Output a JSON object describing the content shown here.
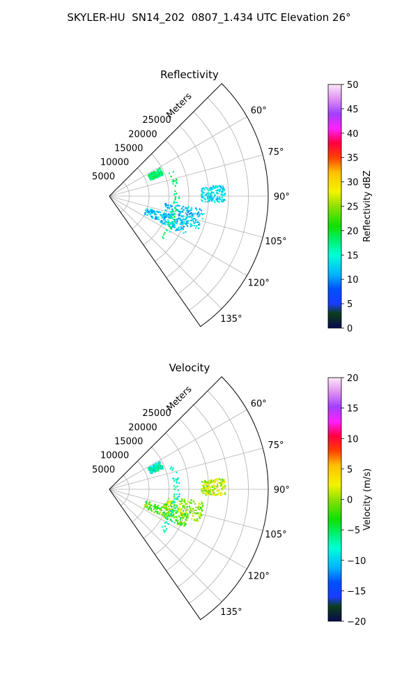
{
  "figure_title": "SKYLER-HU  SN14_202  0807_1.434 UTC Elevation 26°",
  "chart_data": [
    {
      "type": "polar-sector",
      "title": "Reflectivity",
      "radial_label": "Meters",
      "radial_ticks": [
        5000,
        10000,
        15000,
        20000,
        25000
      ],
      "radial_range": [
        0,
        40000
      ],
      "angular_ticks": [
        "60°",
        "75°",
        "90°",
        "105°",
        "120°",
        "135°"
      ],
      "angular_range_deg": [
        45,
        145
      ],
      "grid": true,
      "colorbar": {
        "label": "Reflectivity dBZ",
        "range": [
          0,
          50
        ],
        "ticks": [
          "0",
          "5",
          "10",
          "15",
          "20",
          "25",
          "30",
          "35",
          "40",
          "45",
          "50"
        ]
      },
      "echo_regions": [
        {
          "angle_deg": [
            107,
            117
          ],
          "range_m": [
            9500,
            21000
          ],
          "value": 12
        },
        {
          "angle_deg": [
            97,
            110
          ],
          "range_m": [
            14000,
            24000
          ],
          "value": 12
        },
        {
          "angle_deg": [
            84,
            93
          ],
          "range_m": [
            23000,
            29000
          ],
          "value": 13
        },
        {
          "angle_deg": [
            68,
            128
          ],
          "range_m": [
            16000,
            17500
          ],
          "value": 18
        },
        {
          "angle_deg": [
            60,
            68
          ],
          "range_m": [
            11000,
            14500
          ],
          "value": 18
        }
      ]
    },
    {
      "type": "polar-sector",
      "title": "Velocity",
      "radial_label": "Meters",
      "radial_ticks": [
        5000,
        10000,
        15000,
        20000,
        25000
      ],
      "radial_range": [
        0,
        40000
      ],
      "angular_ticks": [
        "60°",
        "75°",
        "90°",
        "105°",
        "120°",
        "135°"
      ],
      "angular_range_deg": [
        45,
        145
      ],
      "grid": true,
      "colorbar": {
        "label": "Velocity (m/s)",
        "range": [
          -20,
          20
        ],
        "ticks": [
          "−20",
          "−15",
          "−10",
          "−5",
          "0",
          "5",
          "10",
          "15",
          "20"
        ]
      },
      "echo_regions": [
        {
          "angle_deg": [
            107,
            117
          ],
          "range_m": [
            9500,
            21000
          ],
          "value": -2
        },
        {
          "angle_deg": [
            97,
            110
          ],
          "range_m": [
            14000,
            24000
          ],
          "value": 0
        },
        {
          "angle_deg": [
            84,
            93
          ],
          "range_m": [
            23000,
            29000
          ],
          "value": 1
        },
        {
          "angle_deg": [
            68,
            128
          ],
          "range_m": [
            16000,
            17500
          ],
          "value": -8
        },
        {
          "angle_deg": [
            60,
            68
          ],
          "range_m": [
            11000,
            14500
          ],
          "value": -8
        }
      ]
    }
  ]
}
